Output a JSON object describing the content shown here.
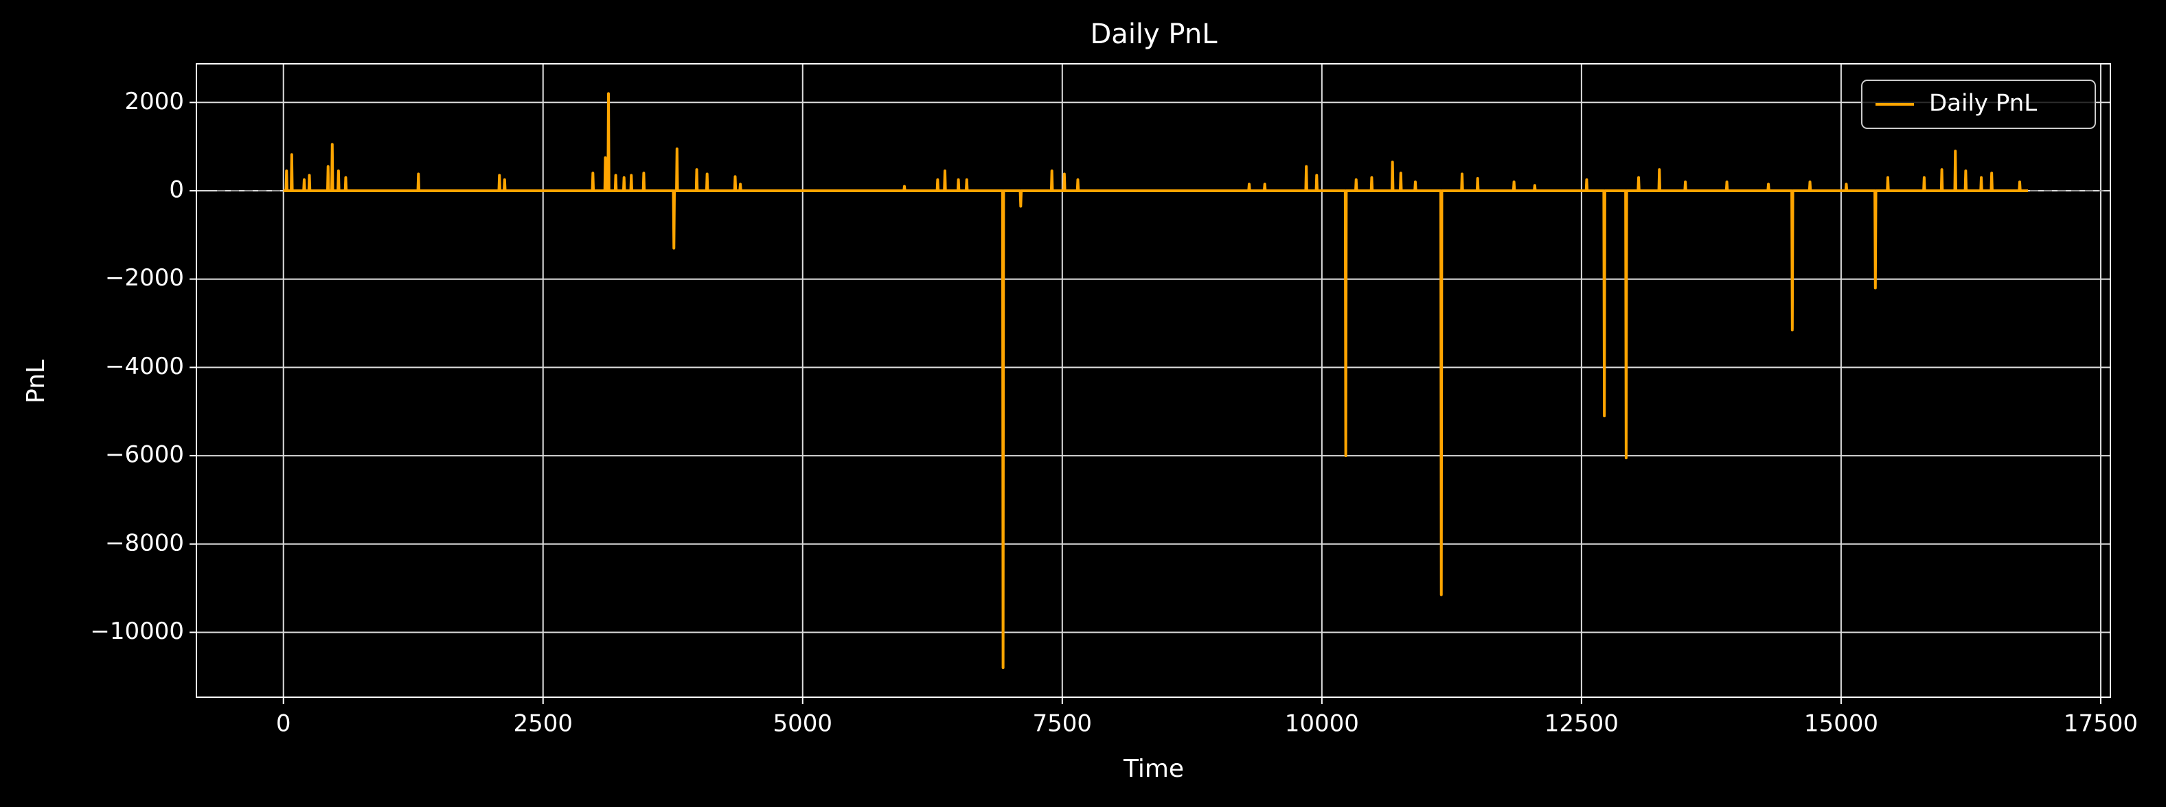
{
  "chart_data": {
    "type": "line",
    "title": "Daily PnL",
    "x_label": "Time",
    "y_label": "PnL",
    "x": [
      0,
      25,
      30,
      35,
      75,
      80,
      85,
      195,
      200,
      205,
      245,
      250,
      255,
      425,
      430,
      435,
      465,
      470,
      475,
      525,
      530,
      535,
      595,
      600,
      605,
      1295,
      1300,
      1305,
      2075,
      2080,
      2085,
      2125,
      2130,
      2135,
      2975,
      2980,
      2985,
      3095,
      3100,
      3105,
      3125,
      3130,
      3135,
      3195,
      3200,
      3205,
      3275,
      3280,
      3285,
      3345,
      3350,
      3355,
      3465,
      3470,
      3475,
      3755,
      3760,
      3765,
      3785,
      3790,
      3795,
      3975,
      3980,
      3985,
      4075,
      4080,
      4085,
      4345,
      4350,
      4355,
      4395,
      4400,
      4405,
      5975,
      5980,
      5985,
      6295,
      6300,
      6305,
      6365,
      6370,
      6375,
      6495,
      6500,
      6505,
      6575,
      6580,
      6585,
      6925,
      6930,
      6935,
      7095,
      7100,
      7105,
      7395,
      7400,
      7405,
      7515,
      7520,
      7525,
      7645,
      7650,
      7655,
      9295,
      9300,
      9305,
      9445,
      9450,
      9455,
      9845,
      9850,
      9855,
      9945,
      9950,
      9955,
      10225,
      10230,
      10235,
      10325,
      10330,
      10335,
      10475,
      10480,
      10485,
      10675,
      10680,
      10685,
      10755,
      10760,
      10765,
      10895,
      10900,
      10905,
      11145,
      11150,
      11155,
      11345,
      11350,
      11355,
      11495,
      11500,
      11505,
      11845,
      11850,
      11855,
      12045,
      12050,
      12055,
      12545,
      12550,
      12555,
      12715,
      12720,
      12725,
      12925,
      12930,
      12935,
      13045,
      13050,
      13055,
      13245,
      13250,
      13255,
      13495,
      13500,
      13505,
      13895,
      13900,
      13905,
      14295,
      14300,
      14305,
      14525,
      14530,
      14535,
      14695,
      14700,
      14705,
      15045,
      15050,
      15055,
      15325,
      15330,
      15335,
      15445,
      15450,
      15455,
      15795,
      15800,
      15805,
      15965,
      15970,
      15975,
      16095,
      16100,
      16105,
      16195,
      16200,
      16205,
      16345,
      16350,
      16355,
      16445,
      16450,
      16455,
      16715,
      16720,
      16725,
      16800
    ],
    "series": [
      {
        "name": "Daily PnL",
        "color": "#ffa500",
        "values": [
          0,
          0,
          450,
          0,
          0,
          820,
          0,
          0,
          250,
          0,
          0,
          350,
          0,
          0,
          550,
          0,
          0,
          1050,
          0,
          0,
          450,
          0,
          0,
          300,
          0,
          0,
          380,
          0,
          0,
          350,
          0,
          0,
          250,
          0,
          0,
          400,
          0,
          0,
          750,
          0,
          0,
          2200,
          0,
          0,
          350,
          0,
          0,
          300,
          0,
          0,
          350,
          0,
          0,
          400,
          0,
          0,
          -1300,
          0,
          0,
          950,
          0,
          0,
          480,
          0,
          0,
          380,
          0,
          0,
          320,
          0,
          0,
          150,
          0,
          0,
          100,
          0,
          0,
          250,
          0,
          0,
          450,
          0,
          0,
          250,
          0,
          0,
          250,
          0,
          0,
          -10800,
          0,
          0,
          -350,
          0,
          0,
          450,
          0,
          0,
          380,
          0,
          0,
          250,
          0,
          0,
          150,
          0,
          0,
          150,
          0,
          0,
          550,
          0,
          0,
          350,
          0,
          0,
          -6000,
          0,
          0,
          250,
          0,
          0,
          300,
          0,
          0,
          650,
          0,
          0,
          400,
          0,
          0,
          200,
          0,
          0,
          -9150,
          0,
          0,
          380,
          0,
          0,
          280,
          0,
          0,
          200,
          0,
          0,
          120,
          0,
          0,
          250,
          0,
          0,
          -5100,
          0,
          0,
          -6050,
          0,
          0,
          300,
          0,
          0,
          480,
          0,
          0,
          200,
          0,
          0,
          200,
          0,
          0,
          150,
          0,
          0,
          -3150,
          0,
          0,
          200,
          0,
          0,
          150,
          0,
          0,
          -2200,
          0,
          0,
          300,
          0,
          0,
          300,
          0,
          0,
          480,
          0,
          0,
          900,
          0,
          0,
          450,
          0,
          0,
          300,
          0,
          0,
          400,
          0,
          0,
          200,
          0,
          0
        ]
      }
    ],
    "xlim": [
      -838,
      17593
    ],
    "ylim": [
      -11469,
      2875
    ],
    "xticks": [
      0,
      2500,
      5000,
      7500,
      10000,
      12500,
      15000,
      17500
    ],
    "yticks": [
      {
        "value": -10000,
        "label": "−10000"
      },
      {
        "value": -8000,
        "label": "−8000"
      },
      {
        "value": -6000,
        "label": "−6000"
      },
      {
        "value": -4000,
        "label": "−4000"
      },
      {
        "value": -2000,
        "label": "−2000"
      },
      0,
      2000
    ],
    "hline": 0,
    "grid": true,
    "legend": "upper right"
  }
}
